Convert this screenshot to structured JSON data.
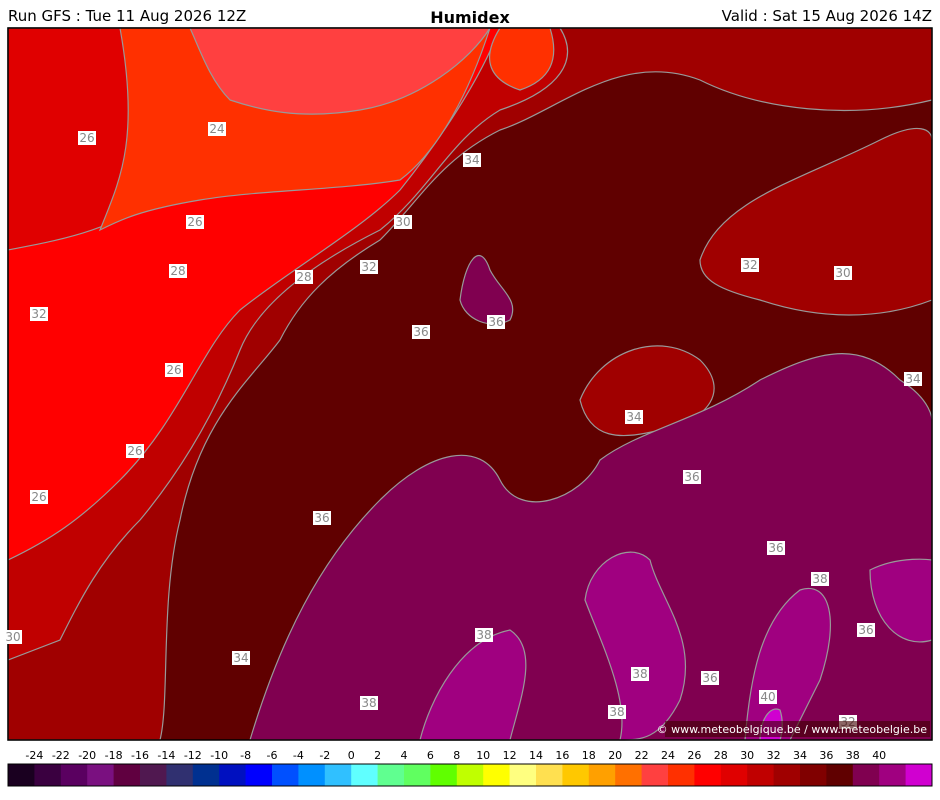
{
  "header": {
    "run": "Run GFS : Tue 11 Aug 2026 12Z",
    "title": "Humidex",
    "valid": "Valid : Sat 15 Aug 2026 14Z"
  },
  "contour_labels": [
    26,
    24,
    34,
    30,
    26,
    28,
    32,
    28,
    32,
    36,
    36,
    32,
    30,
    26,
    34,
    34,
    26,
    36,
    26,
    36,
    36,
    38,
    38,
    36,
    30,
    34,
    38,
    36,
    40,
    38,
    38,
    32
  ],
  "credit": "© www.meteobelgique.be / www.meteobelgie.be",
  "scale": {
    "labels": [
      -24,
      -22,
      -20,
      -18,
      -16,
      -14,
      -12,
      -10,
      -8,
      -6,
      -4,
      -2,
      0,
      2,
      4,
      6,
      8,
      10,
      12,
      14,
      16,
      18,
      20,
      22,
      24,
      26,
      28,
      30,
      32,
      34,
      36,
      38,
      40
    ],
    "colors": [
      "#1a0020",
      "#3a0040",
      "#5a0060",
      "#7a1080",
      "#600040",
      "#501850",
      "#303070",
      "#003090",
      "#0010c0",
      "#0000ff",
      "#0050ff",
      "#0090ff",
      "#30c0ff",
      "#60ffff",
      "#60ff90",
      "#60ff60",
      "#60ff00",
      "#c0ff00",
      "#ffff00",
      "#ffff80",
      "#ffe050",
      "#ffc800",
      "#ffa000",
      "#ff7000",
      "#ff4040",
      "#ff3000",
      "#ff0000",
      "#e00000",
      "#c00000",
      "#a00000",
      "#800000",
      "#600000",
      "#800050",
      "#a00080",
      "#d000d0"
    ]
  }
}
